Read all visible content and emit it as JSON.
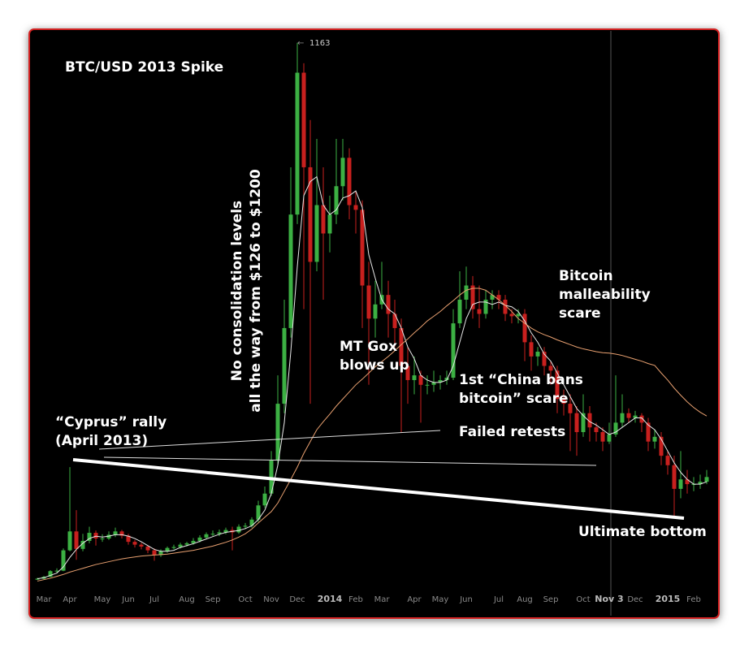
{
  "chart_data": {
    "type": "candlestick",
    "title": "BTC/USD 2013 Spike",
    "categories": [
      null,
      "Mar",
      null,
      null,
      null,
      "Apr",
      null,
      null,
      null,
      null,
      "May",
      null,
      null,
      null,
      "Jun",
      null,
      null,
      null,
      "Jul",
      null,
      null,
      null,
      null,
      "Aug",
      null,
      null,
      null,
      "Sep",
      null,
      null,
      null,
      null,
      "Oct",
      null,
      null,
      null,
      "Nov",
      null,
      null,
      null,
      "Dec",
      null,
      null,
      null,
      null,
      "2014",
      null,
      null,
      null,
      "Feb",
      null,
      null,
      null,
      "Mar",
      null,
      null,
      null,
      null,
      "Apr",
      null,
      null,
      null,
      "May",
      null,
      null,
      null,
      "Jun",
      null,
      null,
      null,
      null,
      "Jul",
      null,
      null,
      null,
      "Aug",
      null,
      null,
      null,
      "Sep",
      null,
      null,
      null,
      null,
      "Oct",
      null,
      null,
      null,
      "Nov 3",
      null,
      null,
      null,
      "Dec",
      null,
      null,
      null,
      null,
      "2015",
      null,
      null,
      null,
      "Feb",
      null,
      null
    ],
    "open": [
      28,
      30,
      34,
      46,
      47,
      90,
      130,
      93,
      110,
      127,
      115,
      115,
      123,
      130,
      121,
      108,
      102,
      98,
      90,
      80,
      88,
      95,
      97,
      102,
      105,
      110,
      117,
      124,
      125,
      128,
      133,
      128,
      140,
      142,
      155,
      185,
      210,
      280,
      400,
      560,
      800,
      1100,
      900,
      700,
      820,
      760,
      800,
      860,
      920,
      820,
      810,
      650,
      580,
      610,
      630,
      590,
      560,
      480,
      450,
      460,
      440,
      440,
      445,
      450,
      455,
      570,
      620,
      650,
      600,
      590,
      620,
      630,
      620,
      590,
      585,
      590,
      530,
      500,
      510,
      480,
      470,
      410,
      400,
      380,
      340,
      380,
      350,
      340,
      320,
      335,
      360,
      380,
      370,
      375,
      360,
      320,
      330,
      290,
      270,
      220,
      240,
      230,
      230,
      235
    ],
    "high": [
      32,
      36,
      48,
      52,
      94,
      266,
      175,
      125,
      140,
      132,
      124,
      130,
      138,
      133,
      125,
      112,
      106,
      101,
      94,
      92,
      98,
      102,
      106,
      108,
      116,
      122,
      128,
      132,
      134,
      138,
      140,
      145,
      148,
      160,
      195,
      225,
      300,
      460,
      620,
      900,
      1163,
      1120,
      1000,
      960,
      900,
      840,
      960,
      960,
      940,
      850,
      830,
      700,
      660,
      700,
      660,
      620,
      580,
      520,
      500,
      470,
      460,
      470,
      460,
      470,
      600,
      680,
      690,
      670,
      650,
      640,
      640,
      640,
      630,
      600,
      600,
      600,
      545,
      520,
      520,
      490,
      480,
      430,
      420,
      395,
      420,
      395,
      360,
      350,
      360,
      460,
      420,
      390,
      385,
      380,
      370,
      345,
      340,
      300,
      290,
      300,
      260,
      245,
      250,
      260
    ],
    "low": [
      27,
      29,
      33,
      43,
      46,
      88,
      70,
      88,
      105,
      100,
      108,
      112,
      118,
      115,
      102,
      96,
      92,
      84,
      68,
      76,
      85,
      92,
      94,
      98,
      102,
      107,
      114,
      120,
      120,
      124,
      90,
      125,
      135,
      138,
      150,
      180,
      205,
      270,
      380,
      540,
      780,
      600,
      400,
      680,
      620,
      720,
      780,
      830,
      790,
      760,
      560,
      440,
      540,
      600,
      540,
      520,
      340,
      400,
      420,
      360,
      420,
      425,
      430,
      440,
      450,
      560,
      600,
      580,
      560,
      580,
      600,
      600,
      575,
      570,
      570,
      490,
      470,
      480,
      460,
      440,
      380,
      375,
      300,
      290,
      330,
      320,
      320,
      300,
      315,
      330,
      350,
      360,
      360,
      340,
      300,
      305,
      270,
      250,
      163,
      200,
      210,
      215,
      220,
      230
    ],
    "close": [
      30,
      34,
      46,
      47,
      90,
      130,
      93,
      110,
      127,
      115,
      115,
      123,
      130,
      121,
      108,
      102,
      98,
      90,
      80,
      88,
      95,
      97,
      102,
      105,
      110,
      117,
      124,
      125,
      128,
      133,
      128,
      140,
      142,
      155,
      185,
      210,
      280,
      400,
      560,
      800,
      1100,
      900,
      700,
      820,
      760,
      800,
      860,
      920,
      820,
      810,
      650,
      580,
      610,
      630,
      590,
      560,
      480,
      450,
      460,
      440,
      440,
      445,
      450,
      455,
      570,
      620,
      650,
      600,
      590,
      620,
      630,
      620,
      590,
      585,
      590,
      530,
      500,
      510,
      480,
      470,
      410,
      400,
      380,
      340,
      380,
      350,
      340,
      320,
      335,
      360,
      380,
      370,
      375,
      360,
      320,
      330,
      290,
      270,
      220,
      240,
      230,
      230,
      235,
      245
    ],
    "up_color": "#3cb043",
    "down_color": "#c8201e",
    "lines": [
      {
        "color": "#e8e8e8",
        "values": [
          30,
          32,
          37,
          42,
          55,
          75,
          92,
          105,
          115,
          120,
          118,
          120,
          123,
          123,
          120,
          115,
          108,
          100,
          92,
          88,
          88,
          90,
          96,
          100,
          104,
          109,
          114,
          119,
          124,
          128,
          130,
          132,
          136,
          142,
          155,
          175,
          210,
          270,
          360,
          510,
          690,
          840,
          870,
          880,
          820,
          800,
          810,
          835,
          840,
          850,
          815,
          715,
          665,
          620,
          600,
          590,
          560,
          520,
          495,
          460,
          450,
          445,
          445,
          450,
          480,
          530,
          580,
          610,
          615,
          615,
          610,
          615,
          608,
          605,
          595,
          575,
          550,
          530,
          505,
          490,
          465,
          440,
          415,
          390,
          375,
          362,
          355,
          345,
          335,
          340,
          350,
          360,
          370,
          370,
          355,
          345,
          325,
          300,
          275,
          255,
          240,
          230,
          230,
          235
        ]
      },
      {
        "color": "#e8a070",
        "values": [
          25,
          28,
          31,
          35,
          39,
          44,
          48,
          52,
          56,
          60,
          63,
          66,
          69,
          72,
          74,
          76,
          78,
          79,
          80,
          81,
          82,
          84,
          86,
          88,
          90,
          93,
          96,
          99,
          103,
          107,
          112,
          118,
          125,
          135,
          148,
          160,
          172,
          190,
          215,
          240,
          266,
          295,
          320,
          345,
          362,
          378,
          395,
          410,
          425,
          440,
          452,
          465,
          478,
          489,
          500,
          512,
          525,
          537,
          550,
          562,
          575,
          585,
          595,
          607,
          618,
          630,
          640,
          644,
          644,
          640,
          630,
          620,
          608,
          595,
          580,
          570,
          560,
          552,
          546,
          541,
          535,
          530,
          525,
          520,
          516,
          513,
          510,
          508,
          507,
          505,
          502,
          498,
          494,
          490,
          485,
          481,
          465,
          450,
          433,
          418,
          404,
          392,
          382,
          374
        ]
      }
    ],
    "ylim": [
      0,
      1185
    ],
    "annotations": [
      {
        "lines": [
          "“Cyprus” rally",
          "(April 2013)"
        ]
      },
      {
        "lines": [
          "No consolidation levels",
          "all the way from $126 to $1200"
        ]
      },
      {
        "lines": [
          "MT Gox",
          "blows up"
        ]
      },
      {
        "lines": [
          "1st “China bans",
          "bitcoin” scare"
        ]
      },
      {
        "lines": [
          "Failed retests"
        ]
      },
      {
        "lines": [
          "Bitcoin",
          "malleability",
          "scare"
        ]
      },
      {
        "lines": [
          "Ultimate bottom"
        ]
      }
    ]
  }
}
